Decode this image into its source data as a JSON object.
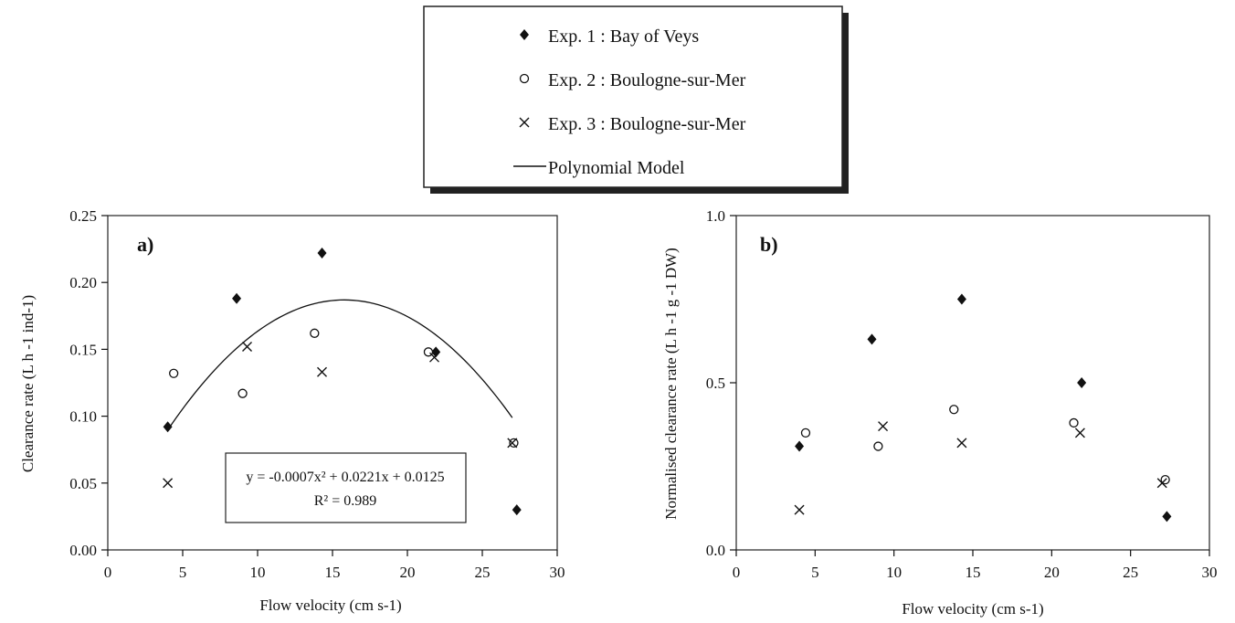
{
  "legend": {
    "placement": "top-center",
    "entries": [
      {
        "label": "Exp. 1 : Bay of Veys",
        "marker": "filled-diamond"
      },
      {
        "label": "Exp. 2 : Boulogne-sur-Mer",
        "marker": "open-circle"
      },
      {
        "label": "Exp. 3 : Boulogne-sur-Mer",
        "marker": "cross"
      },
      {
        "label": "Polynomial Model",
        "marker": "line"
      }
    ]
  },
  "chart_data": [
    {
      "type": "scatter",
      "panel_label": "a)",
      "xlabel": "Flow velocity (cm s-1)",
      "ylabel": "Clearance rate (L h -1 ind-1)",
      "xlim": [
        0,
        30
      ],
      "ylim": [
        0,
        0.25
      ],
      "xticks": [
        "0",
        "5",
        "10",
        "15",
        "20",
        "25",
        "30"
      ],
      "yticks": [
        "0.00",
        "0.05",
        "0.10",
        "0.15",
        "0.20",
        "0.25"
      ],
      "grid": false,
      "series": [
        {
          "name": "Exp. 1 : Bay of Veys",
          "marker": "filled-diamond",
          "points": [
            [
              4.0,
              0.092
            ],
            [
              8.6,
              0.188
            ],
            [
              14.3,
              0.222
            ],
            [
              21.9,
              0.148
            ],
            [
              27.3,
              0.03
            ]
          ]
        },
        {
          "name": "Exp. 2 : Boulogne-sur-Mer",
          "marker": "open-circle",
          "points": [
            [
              4.4,
              0.132
            ],
            [
              9.0,
              0.117
            ],
            [
              13.8,
              0.162
            ],
            [
              21.4,
              0.148
            ],
            [
              27.1,
              0.08
            ]
          ]
        },
        {
          "name": "Exp. 3 : Boulogne-sur-Mer",
          "marker": "cross",
          "points": [
            [
              4.0,
              0.05
            ],
            [
              9.3,
              0.152
            ],
            [
              14.3,
              0.133
            ],
            [
              21.8,
              0.144
            ],
            [
              27.0,
              0.08
            ]
          ]
        }
      ],
      "model": {
        "name": "Polynomial Model",
        "coefficients": {
          "a": -0.0007,
          "b": 0.0221,
          "c": 0.0125
        },
        "x_range": [
          4.0,
          27.0
        ],
        "equation_text": "y = -0.0007x² + 0.0221x + 0.0125",
        "r2_text": "R² = 0.989"
      }
    },
    {
      "type": "scatter",
      "panel_label": "b)",
      "xlabel": "Flow velocity (cm s-1)",
      "ylabel": "Normalised clearance rate (L h -1 g -1 DW)",
      "xlim": [
        0,
        30
      ],
      "ylim": [
        0,
        1.0
      ],
      "xticks": [
        "0",
        "5",
        "10",
        "15",
        "20",
        "25",
        "30"
      ],
      "yticks": [
        "0.0",
        "0.5",
        "1.0"
      ],
      "grid": false,
      "series": [
        {
          "name": "Exp. 1 : Bay of Veys",
          "marker": "filled-diamond",
          "points": [
            [
              4.0,
              0.31
            ],
            [
              8.6,
              0.63
            ],
            [
              14.3,
              0.75
            ],
            [
              21.9,
              0.5
            ],
            [
              27.3,
              0.1
            ]
          ]
        },
        {
          "name": "Exp. 2 : Boulogne-sur-Mer",
          "marker": "open-circle",
          "points": [
            [
              4.4,
              0.35
            ],
            [
              9.0,
              0.31
            ],
            [
              13.8,
              0.42
            ],
            [
              21.4,
              0.38
            ],
            [
              27.2,
              0.21
            ]
          ]
        },
        {
          "name": "Exp. 3 : Boulogne-sur-Mer",
          "marker": "cross",
          "points": [
            [
              4.0,
              0.12
            ],
            [
              9.3,
              0.37
            ],
            [
              14.3,
              0.32
            ],
            [
              21.8,
              0.35
            ],
            [
              27.0,
              0.2
            ]
          ]
        }
      ]
    }
  ]
}
